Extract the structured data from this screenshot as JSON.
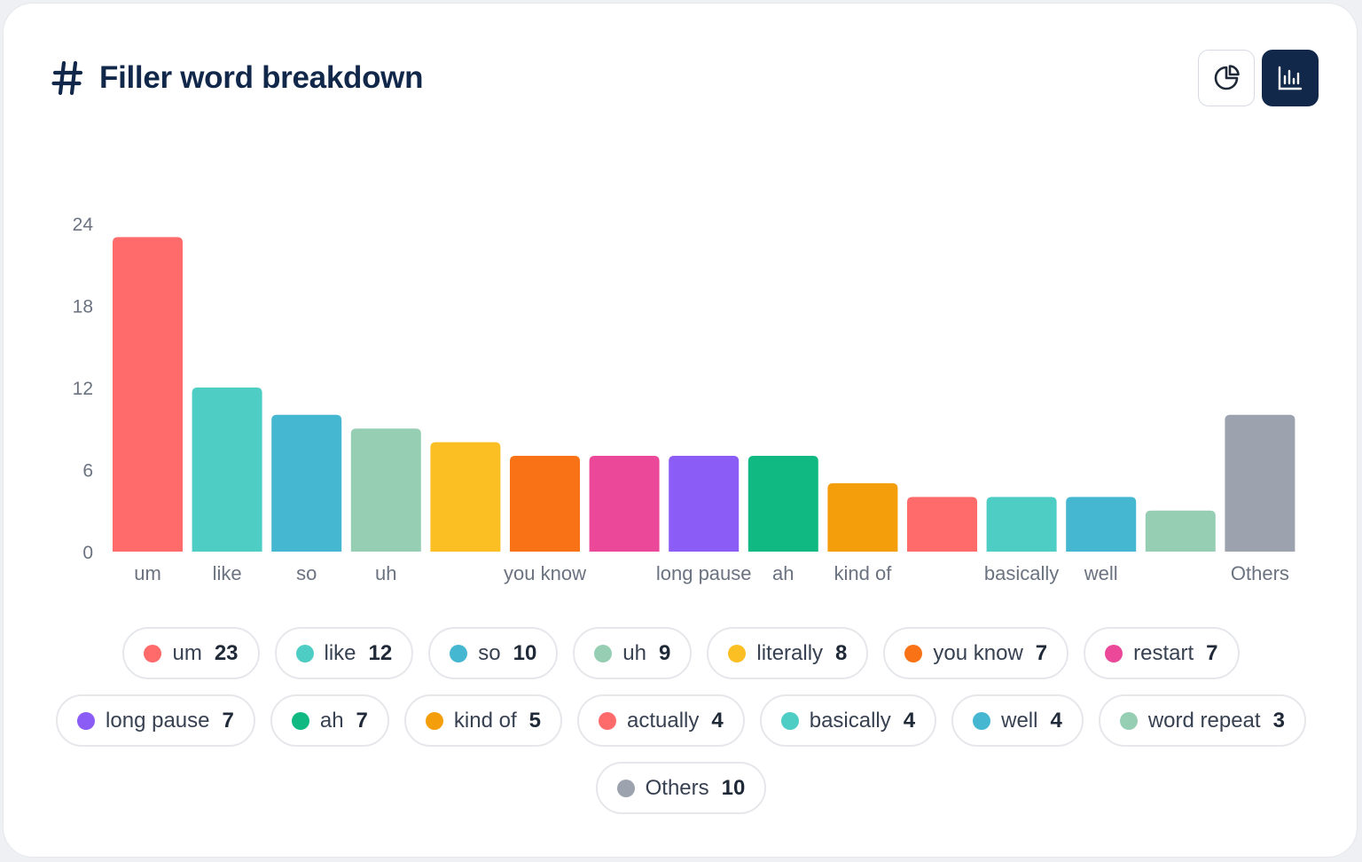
{
  "title": "Filler word breakdown",
  "toggles": {
    "pie": {
      "icon": "pie-chart-icon"
    },
    "bar": {
      "icon": "bar-chart-icon",
      "active": true
    }
  },
  "chart_data": {
    "type": "bar",
    "title": "",
    "xlabel": "",
    "ylabel": "",
    "ylim": [
      0,
      24
    ],
    "yticks": [
      0,
      6,
      12,
      18,
      24
    ],
    "grid": false,
    "categories": [
      "um",
      "like",
      "so",
      "uh",
      "literally",
      "you know",
      "restart",
      "long pause",
      "ah",
      "kind of",
      "actually",
      "basically",
      "well",
      "word repeat",
      "Others"
    ],
    "visible_tick_labels": [
      "um",
      "like",
      "so",
      "uh",
      "",
      "you know",
      "",
      "long pause",
      "ah",
      "kind of",
      "",
      "basically",
      "well",
      "",
      "Others"
    ],
    "values": [
      23,
      12,
      10,
      9,
      8,
      7,
      7,
      7,
      7,
      5,
      4,
      4,
      4,
      3,
      10
    ],
    "colors": [
      "#ff6b6b",
      "#4ecdc4",
      "#45b7d1",
      "#96ceb4",
      "#fbbf24",
      "#f97316",
      "#ec4899",
      "#8b5cf6",
      "#10b981",
      "#f59e0b",
      "#ff6b6b",
      "#4ecdc4",
      "#45b7d1",
      "#96ceb4",
      "#9ca3af"
    ]
  },
  "legend": [
    {
      "label": "um",
      "value": "23",
      "color": "#ff6b6b"
    },
    {
      "label": "like",
      "value": "12",
      "color": "#4ecdc4"
    },
    {
      "label": "so",
      "value": "10",
      "color": "#45b7d1"
    },
    {
      "label": "uh",
      "value": "9",
      "color": "#96ceb4"
    },
    {
      "label": "literally",
      "value": "8",
      "color": "#fbbf24"
    },
    {
      "label": "you know",
      "value": "7",
      "color": "#f97316"
    },
    {
      "label": "restart",
      "value": "7",
      "color": "#ec4899"
    },
    {
      "label": "long pause",
      "value": "7",
      "color": "#8b5cf6"
    },
    {
      "label": "ah",
      "value": "7",
      "color": "#10b981"
    },
    {
      "label": "kind of",
      "value": "5",
      "color": "#f59e0b"
    },
    {
      "label": "actually",
      "value": "4",
      "color": "#ff6b6b"
    },
    {
      "label": "basically",
      "value": "4",
      "color": "#4ecdc4"
    },
    {
      "label": "well",
      "value": "4",
      "color": "#45b7d1"
    },
    {
      "label": "word repeat",
      "value": "3",
      "color": "#96ceb4"
    },
    {
      "label": "Others",
      "value": "10",
      "color": "#9ca3af"
    }
  ]
}
